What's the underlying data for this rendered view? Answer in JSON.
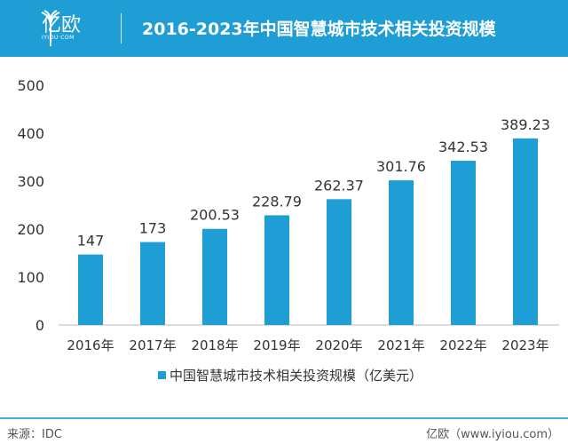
{
  "header": {
    "logo_text": "亿欧",
    "logo_sub": "IYIOU·COM",
    "title": "2016-2023年中国智慧城市技术相关投资规模"
  },
  "chart_data": {
    "type": "bar",
    "title": "2016-2023年中国智慧城市技术相关投资规模",
    "categories": [
      "2016年",
      "2017年",
      "2018年",
      "2019年",
      "2020年",
      "2021年",
      "2022年",
      "2023年"
    ],
    "series": [
      {
        "name": "中国智慧城市技术相关投资规模（亿美元）",
        "values": [
          147,
          173,
          200.53,
          228.79,
          262.37,
          301.76,
          342.53,
          389.23
        ]
      }
    ],
    "data_labels": [
      "147",
      "173",
      "200.53",
      "228.79",
      "262.37",
      "301.76",
      "342.53",
      "389.23"
    ],
    "yticks": [
      "0",
      "100",
      "200",
      "300",
      "400",
      "500"
    ],
    "ylim": [
      0,
      500
    ],
    "grid": false,
    "legend": "bottom",
    "color": "#1f9ed6"
  },
  "footer": {
    "source": "来源：IDC",
    "site": "亿欧（www.iyiou.com）"
  }
}
